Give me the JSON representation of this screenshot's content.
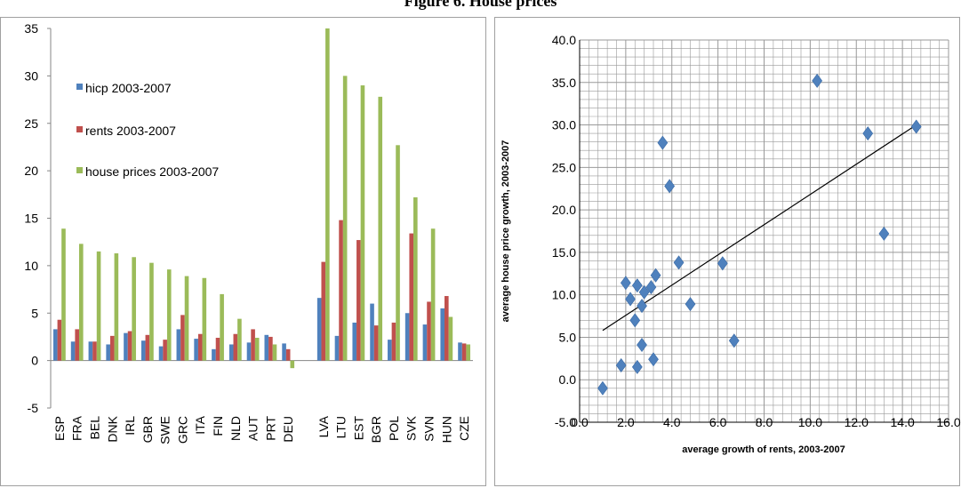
{
  "figure_title": "Figure 6. House prices",
  "colors": {
    "hicp": "#4f81bd",
    "rents": "#c0504d",
    "house": "#9bbb59",
    "marker": "#4f81bd",
    "grid": "#999999",
    "frame": "#a0a0a0"
  },
  "chart_data": [
    {
      "type": "bar",
      "title": "",
      "xlabel": "",
      "ylabel": "",
      "ylim": [
        -5,
        35
      ],
      "yticks": [
        35,
        30,
        25,
        20,
        15,
        10,
        5,
        0,
        -5
      ],
      "legend": "upper-left",
      "grid": false,
      "categories": [
        "ESP",
        "FRA",
        "BEL",
        "DNK",
        "IRL",
        "GBR",
        "SWE",
        "GRC",
        "ITA",
        "FIN",
        "NLD",
        "AUT",
        "PRT",
        "DEU",
        "",
        "LVA",
        "LTU",
        "EST",
        "BGR",
        "POL",
        "SVK",
        "SVN",
        "HUN",
        "CZE"
      ],
      "series": [
        {
          "name": "hicp 2003-2007",
          "values": [
            3.3,
            2.0,
            2.0,
            1.7,
            2.9,
            2.1,
            1.5,
            3.3,
            2.3,
            1.2,
            1.7,
            1.9,
            2.7,
            1.8,
            null,
            6.6,
            2.6,
            4.0,
            6.0,
            2.2,
            5.0,
            3.8,
            5.5,
            1.9
          ]
        },
        {
          "name": "rents 2003-2007",
          "values": [
            4.3,
            3.3,
            2.0,
            2.6,
            3.1,
            2.7,
            2.2,
            4.8,
            2.8,
            2.4,
            2.8,
            3.3,
            2.5,
            1.2,
            null,
            10.4,
            14.8,
            12.7,
            3.7,
            4.0,
            13.4,
            6.2,
            6.8,
            1.8
          ]
        },
        {
          "name": "house prices 2003-2007",
          "values": [
            13.9,
            12.3,
            11.5,
            11.3,
            10.9,
            10.3,
            9.6,
            8.9,
            8.7,
            7.0,
            4.4,
            2.4,
            1.7,
            -0.8,
            null,
            35.0,
            30.0,
            29.0,
            27.8,
            22.7,
            17.2,
            13.9,
            4.6,
            1.7
          ]
        }
      ]
    },
    {
      "type": "scatter",
      "title": "",
      "xlabel": "average growth of rents, 2003-2007",
      "ylabel": "average house price growth, 2003-2007",
      "xlim": [
        0,
        16
      ],
      "ylim": [
        -5,
        40
      ],
      "xticks": [
        "0.0",
        "2.0",
        "4.0",
        "6.0",
        "8.0",
        "10.0",
        "12.0",
        "14.0",
        "16.0"
      ],
      "yticks": [
        "40.0",
        "35.0",
        "30.0",
        "25.0",
        "20.0",
        "15.0",
        "10.0",
        "5.0",
        "0.0",
        "-5.0"
      ],
      "grid": true,
      "points": [
        {
          "x": 1.0,
          "y": -1.0
        },
        {
          "x": 1.8,
          "y": 1.7
        },
        {
          "x": 2.5,
          "y": 1.5
        },
        {
          "x": 2.7,
          "y": 4.1
        },
        {
          "x": 3.2,
          "y": 2.4
        },
        {
          "x": 2.0,
          "y": 11.4
        },
        {
          "x": 2.2,
          "y": 9.5
        },
        {
          "x": 2.4,
          "y": 7.0
        },
        {
          "x": 2.5,
          "y": 11.1
        },
        {
          "x": 2.7,
          "y": 8.7
        },
        {
          "x": 2.8,
          "y": 10.3
        },
        {
          "x": 3.1,
          "y": 10.9
        },
        {
          "x": 3.3,
          "y": 12.3
        },
        {
          "x": 3.6,
          "y": 27.9
        },
        {
          "x": 3.9,
          "y": 22.8
        },
        {
          "x": 4.3,
          "y": 13.8
        },
        {
          "x": 4.8,
          "y": 8.9
        },
        {
          "x": 6.2,
          "y": 13.7
        },
        {
          "x": 6.7,
          "y": 4.6
        },
        {
          "x": 10.3,
          "y": 35.2
        },
        {
          "x": 12.5,
          "y": 29.0
        },
        {
          "x": 13.2,
          "y": 17.2
        },
        {
          "x": 14.6,
          "y": 29.8
        }
      ],
      "trendline": {
        "x1": 1.0,
        "y1": 5.8,
        "x2": 14.6,
        "y2": 30.0
      }
    }
  ]
}
